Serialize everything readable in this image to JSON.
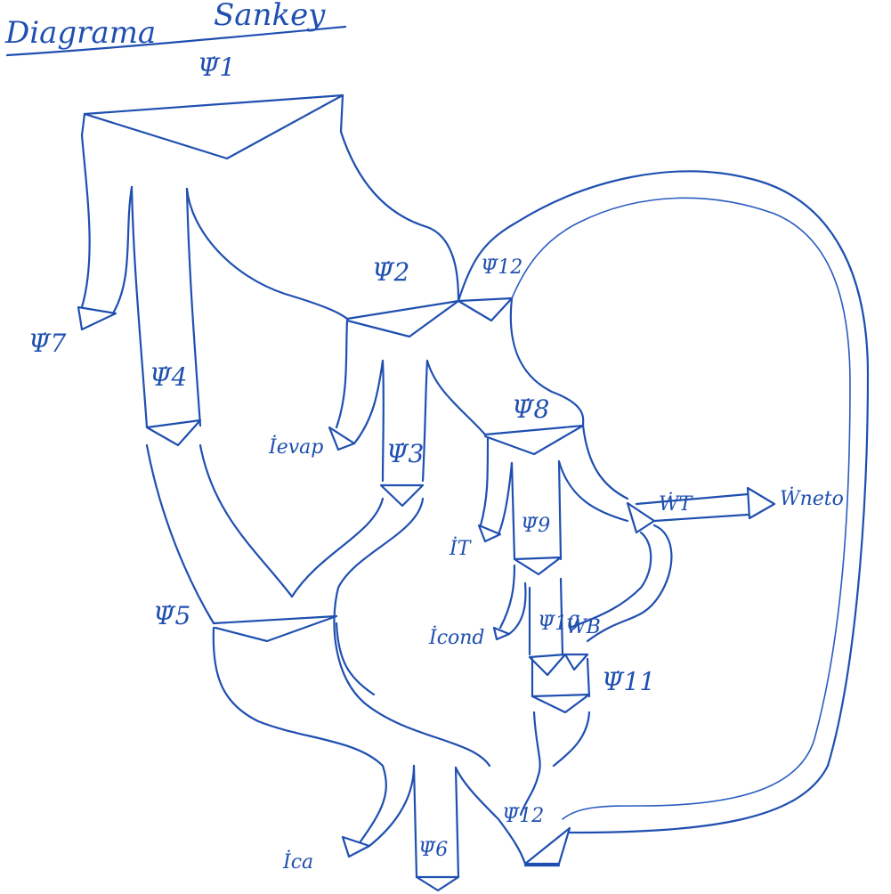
{
  "title": {
    "left": "Diagrama",
    "right": "Sankey"
  },
  "labels": {
    "psi1": "Ψ̇1",
    "psi2": "Ψ̇2",
    "psi12_top": "Ψ̇12",
    "psi7": "Ψ̇7",
    "psi4": "Ψ̇4",
    "psi8": "Ψ̇8",
    "i_evap": "İevap",
    "psi3": "Ψ̇3",
    "w_t": "ẆT",
    "w_neto": "Ẇneto",
    "i_t": "İT",
    "psi9": "Ψ̇9",
    "psi5": "Ψ̇5",
    "i_cond": "İcond",
    "psi10": "Ψ̇10",
    "w_b": "ẆB",
    "psi11": "Ψ̇11",
    "psi12_bottom": "Ψ̇12",
    "i_ca": "İca",
    "psi6": "Ψ̇6"
  },
  "colors": {
    "ink": "#1f4fb0",
    "background": "#ffffff"
  }
}
